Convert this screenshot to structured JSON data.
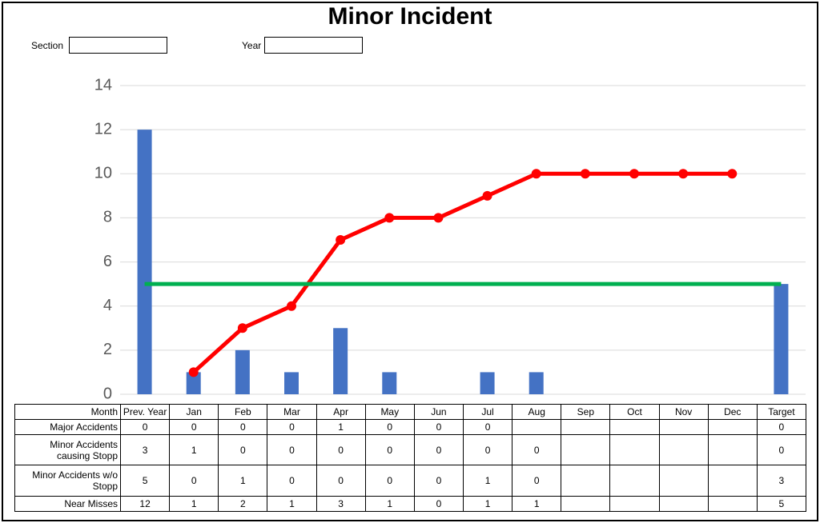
{
  "header": {
    "title": "Minor Incident",
    "section_label": "Section",
    "year_label": "Year"
  },
  "chart_data": {
    "type": "bar",
    "categories": [
      "Prev. Year",
      "Jan",
      "Feb",
      "Mar",
      "Apr",
      "May",
      "Jun",
      "Jul",
      "Aug",
      "Sep",
      "Oct",
      "Nov",
      "Dec",
      "Target"
    ],
    "series": [
      {
        "name": "Near Misses",
        "type": "bar",
        "color": "#4472c4",
        "values": [
          12,
          1,
          2,
          1,
          3,
          1,
          0,
          1,
          1,
          null,
          null,
          null,
          null,
          5
        ]
      },
      {
        "type": "line",
        "color": "#ff0000",
        "markers": true,
        "values": [
          null,
          1,
          3,
          4,
          7,
          8,
          8,
          9,
          10,
          10,
          10,
          10,
          10,
          null
        ]
      },
      {
        "type": "line",
        "color": "#00b050",
        "markers": false,
        "values": [
          5,
          5,
          5,
          5,
          5,
          5,
          5,
          5,
          5,
          5,
          5,
          5,
          5,
          5
        ]
      }
    ],
    "ylim": [
      0,
      14
    ],
    "yticks": [
      0,
      2,
      4,
      6,
      8,
      10,
      12,
      14
    ],
    "grid": true
  },
  "table": {
    "corner": "Month",
    "rows": [
      {
        "label": "Major Accidents",
        "values": [
          0,
          0,
          0,
          0,
          1,
          0,
          0,
          0,
          null,
          null,
          null,
          null,
          null,
          0
        ]
      },
      {
        "label": "Minor Accidents causing Stopp",
        "values": [
          3,
          1,
          0,
          0,
          0,
          0,
          0,
          0,
          0,
          null,
          null,
          null,
          null,
          0
        ]
      },
      {
        "label": "Minor Accidents w/o Stopp",
        "values": [
          5,
          0,
          1,
          0,
          0,
          0,
          0,
          1,
          0,
          null,
          null,
          null,
          null,
          3
        ]
      }
    ]
  }
}
